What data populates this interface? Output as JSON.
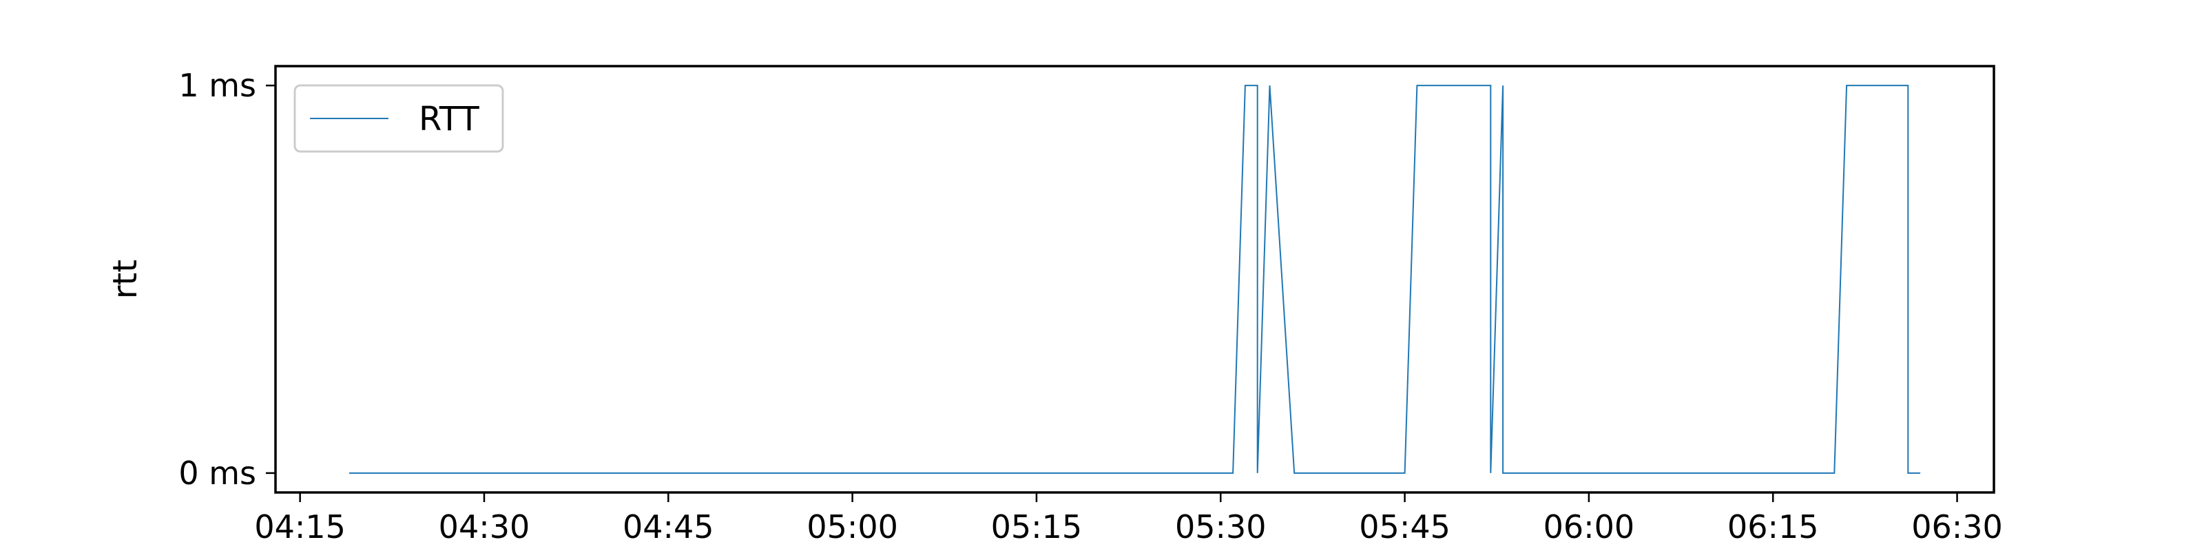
{
  "chart_data": {
    "type": "line",
    "step": true,
    "ylabel": "rtt",
    "xlabel": "",
    "title": "",
    "x_ticks": [
      "04:15",
      "04:30",
      "04:45",
      "05:00",
      "05:15",
      "05:30",
      "05:45",
      "06:00",
      "06:15",
      "06:30"
    ],
    "y_ticks": [
      "0 ms",
      "1 ms"
    ],
    "xlim": [
      "04:13",
      "06:33"
    ],
    "ylim": [
      -0.05,
      1.05
    ],
    "grid": false,
    "legend_position": "upper-left",
    "series": [
      {
        "name": "RTT",
        "color": "#1f77b4",
        "x": [
          "04:19",
          "05:31",
          "05:32",
          "05:33",
          "05:33",
          "05:34",
          "05:34",
          "05:36",
          "05:36",
          "05:45",
          "05:46",
          "05:52",
          "05:52",
          "05:53",
          "05:53",
          "06:20",
          "06:21",
          "06:26",
          "06:26",
          "06:27"
        ],
        "y": [
          0,
          0,
          1,
          1,
          0,
          1,
          1,
          0,
          0,
          0,
          1,
          1,
          0,
          1,
          0,
          0,
          1,
          1,
          0,
          0
        ]
      }
    ]
  }
}
